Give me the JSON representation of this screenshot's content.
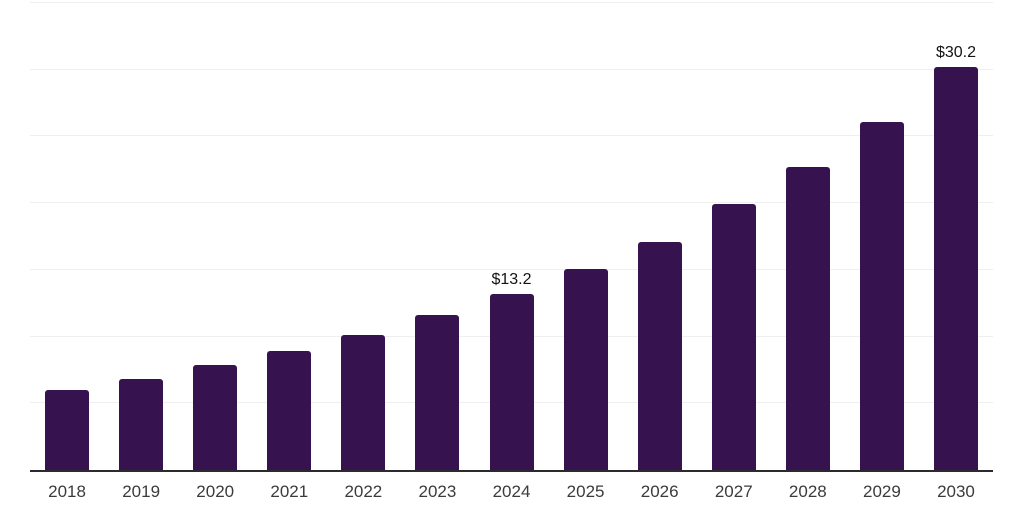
{
  "chart_data": {
    "type": "bar",
    "categories": [
      "2018",
      "2019",
      "2020",
      "2021",
      "2022",
      "2023",
      "2024",
      "2025",
      "2026",
      "2027",
      "2028",
      "2029",
      "2030"
    ],
    "values": [
      6.0,
      6.8,
      7.9,
      8.9,
      10.1,
      11.6,
      13.2,
      15.1,
      17.1,
      19.9,
      22.7,
      26.1,
      30.2
    ],
    "data_labels": [
      "",
      "",
      "",
      "",
      "",
      "",
      "$13.2",
      "",
      "",
      "",
      "",
      "",
      "$30.2"
    ],
    "title": "",
    "xlabel": "",
    "ylabel": "",
    "ylim": [
      0,
      35
    ],
    "gridline_step": 5,
    "grid": true,
    "legend": false,
    "bar_color": "#36134E",
    "gridline_color": "#efefef",
    "axis_color": "#2b2b2b",
    "data_label_color": "#131313",
    "tick_label_color": "#3b3b3b"
  }
}
